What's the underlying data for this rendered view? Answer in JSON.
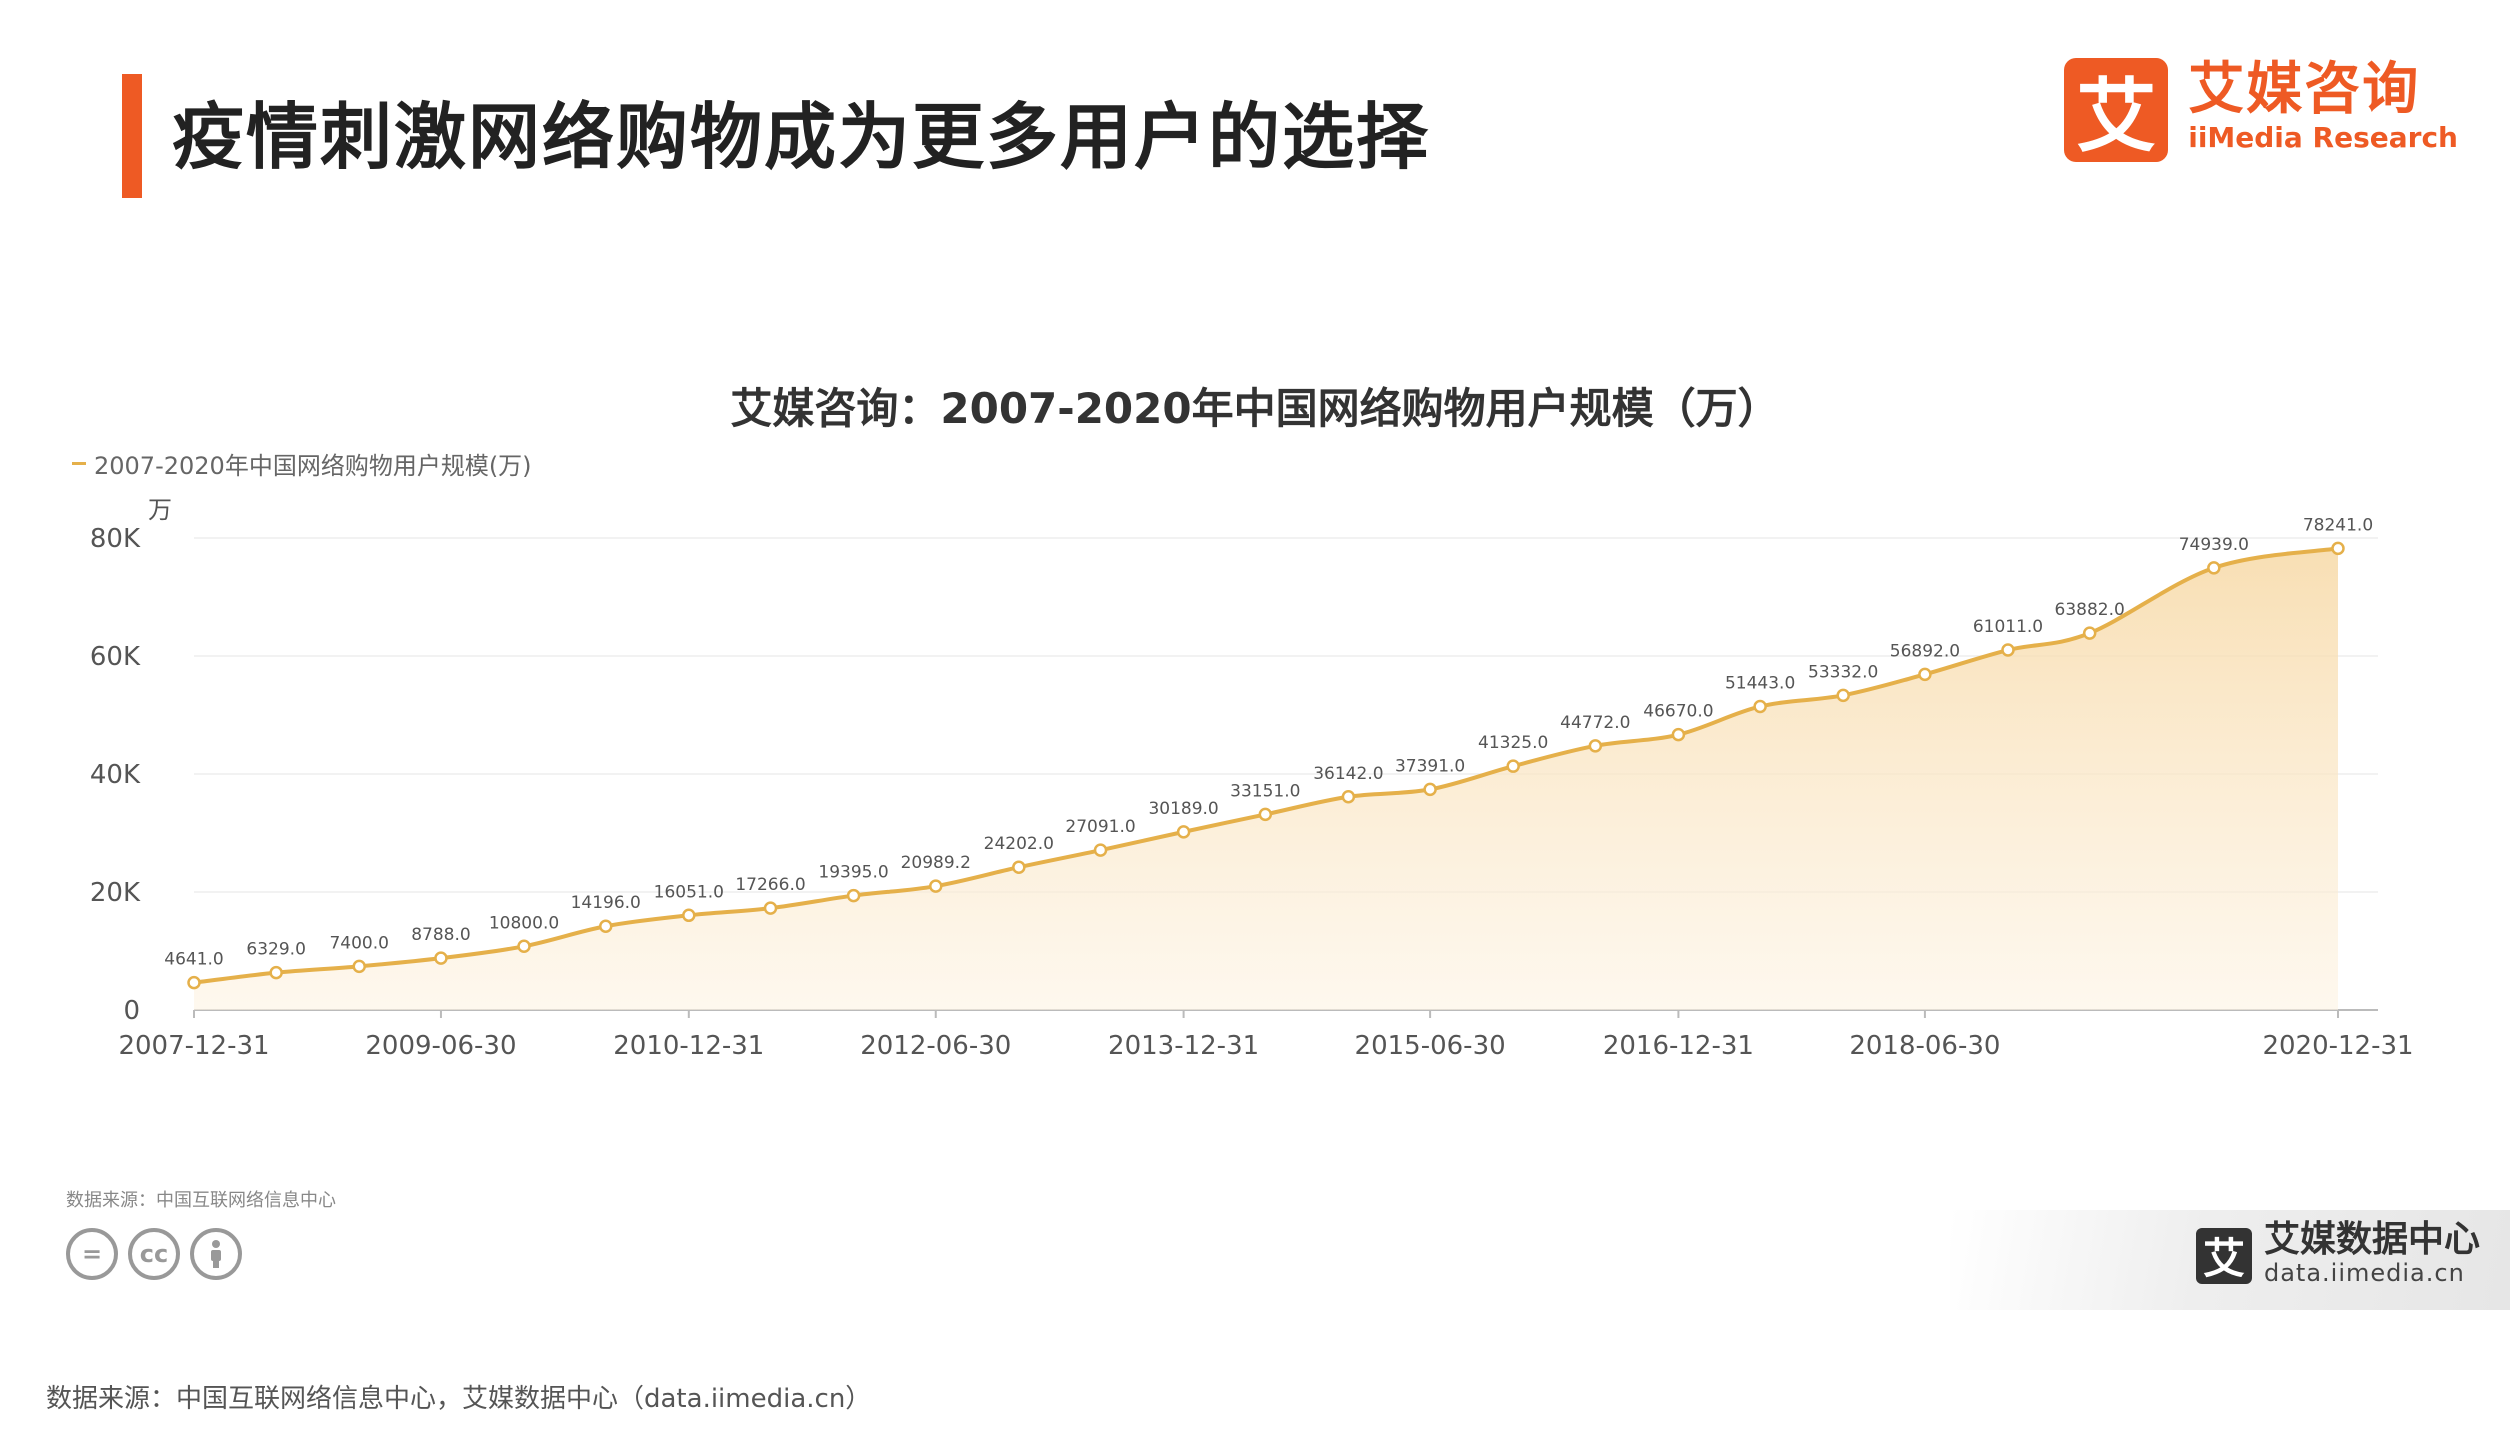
{
  "header": {
    "title": "疫情刺激网络购物成为更多用户的选择",
    "brand_cn": "艾媒咨询",
    "brand_en": "iiMedia Research",
    "brand_mark": "艾"
  },
  "chart_data": {
    "type": "area",
    "title": "艾媒咨询：2007-2020年中国网络购物用户规模（万）",
    "legend": "2007-2020年中国网络购物用户规模(万)",
    "legend_position": "top-left",
    "ylabel": "万",
    "ylim": [
      0,
      80000
    ],
    "yticks": [
      {
        "value": 0,
        "label": "0"
      },
      {
        "value": 20000,
        "label": "20K"
      },
      {
        "value": 40000,
        "label": "40K"
      },
      {
        "value": 60000,
        "label": "60K"
      },
      {
        "value": 80000,
        "label": "80K"
      }
    ],
    "xticks": [
      "2007-12-31",
      "2009-06-30",
      "2010-12-31",
      "2012-06-30",
      "2013-12-31",
      "2015-06-30",
      "2016-12-31",
      "2018-06-30",
      "2020-12-31"
    ],
    "grid": true,
    "series": [
      {
        "name": "2007-2020年中国网络购物用户规模(万)",
        "color": "#e5b04a",
        "points": [
          {
            "x": "2007-12-31",
            "y": 4641.0,
            "label": "4641.0"
          },
          {
            "x": "2008-06-30",
            "y": 6329.0,
            "label": "6329.0"
          },
          {
            "x": "2008-12-31",
            "y": 7400.0,
            "label": "7400.0"
          },
          {
            "x": "2009-06-30",
            "y": 8788.0,
            "label": "8788.0"
          },
          {
            "x": "2009-12-31",
            "y": 10800.0,
            "label": "10800.0"
          },
          {
            "x": "2010-06-30",
            "y": 14196.0,
            "label": "14196.0"
          },
          {
            "x": "2010-12-31",
            "y": 16051.0,
            "label": "16051.0"
          },
          {
            "x": "2011-06-30",
            "y": 17266.0,
            "label": "17266.0"
          },
          {
            "x": "2011-12-31",
            "y": 19395.0,
            "label": "19395.0"
          },
          {
            "x": "2012-06-30",
            "y": 20989.2,
            "label": "20989.2"
          },
          {
            "x": "2012-12-31",
            "y": 24202.0,
            "label": "24202.0"
          },
          {
            "x": "2013-06-30",
            "y": 27091.0,
            "label": "27091.0"
          },
          {
            "x": "2013-12-31",
            "y": 30189.0,
            "label": "30189.0"
          },
          {
            "x": "2014-06-30",
            "y": 33151.0,
            "label": "33151.0"
          },
          {
            "x": "2014-12-31",
            "y": 36142.0,
            "label": "36142.0"
          },
          {
            "x": "2015-06-30",
            "y": 37391.0,
            "label": "37391.0"
          },
          {
            "x": "2015-12-31",
            "y": 41325.0,
            "label": "41325.0"
          },
          {
            "x": "2016-06-30",
            "y": 44772.0,
            "label": "44772.0"
          },
          {
            "x": "2016-12-31",
            "y": 46670.0,
            "label": "46670.0"
          },
          {
            "x": "2017-06-30",
            "y": 51443.0,
            "label": "51443.0"
          },
          {
            "x": "2017-12-31",
            "y": 53332.0,
            "label": "53332.0"
          },
          {
            "x": "2018-06-30",
            "y": 56892.0,
            "label": "56892.0"
          },
          {
            "x": "2018-12-31",
            "y": 61011.0,
            "label": "61011.0"
          },
          {
            "x": "2019-06-30",
            "y": 63882.0,
            "label": "63882.0"
          },
          {
            "x": "2020-03-31",
            "y": 74939.0,
            "label": "74939.0"
          },
          {
            "x": "2020-12-31",
            "y": 78241.0,
            "label": "78241.0"
          }
        ]
      }
    ]
  },
  "footer": {
    "small_source": "数据来源：中国互联网络信息中心",
    "cc_icons": [
      "=",
      "cc",
      "person-icon"
    ],
    "watermark_cn": "艾媒数据中心",
    "watermark_en": "data.iimedia.cn",
    "watermark_mark": "艾",
    "source": "数据来源：中国互联网络信息中心，艾媒数据中心（data.iimedia.cn）"
  }
}
